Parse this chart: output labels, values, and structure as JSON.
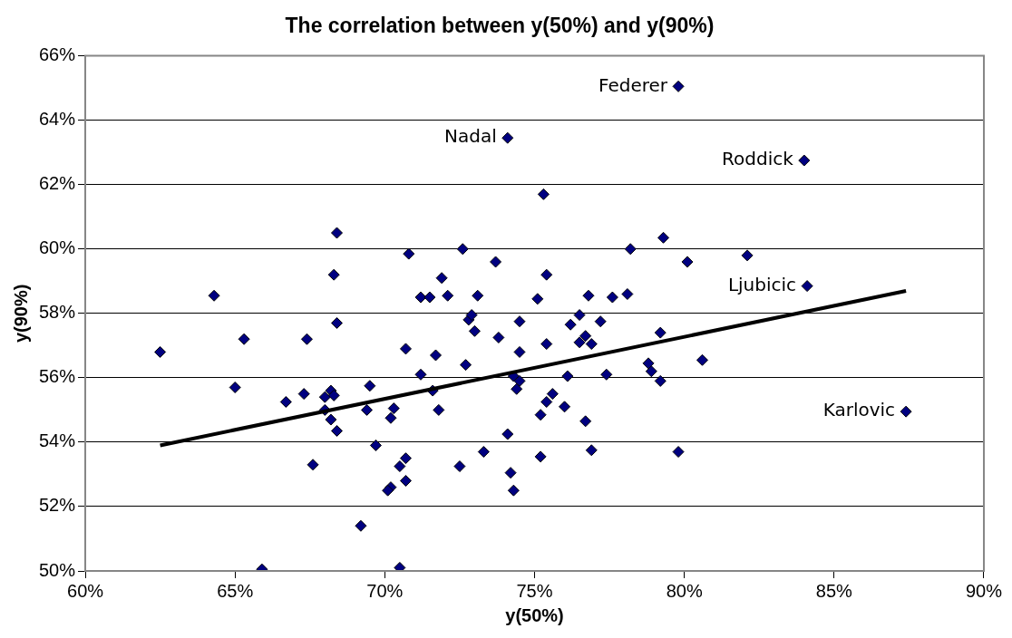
{
  "chart_data": {
    "type": "scatter",
    "title": "The correlation between y(50%) and y(90%)",
    "xlabel": "y(50%)",
    "ylabel": "y(90%)",
    "xlim": [
      60,
      90
    ],
    "xticks": [
      {
        "value": 60,
        "label": "60%"
      },
      {
        "value": 65,
        "label": "65%"
      },
      {
        "value": 70,
        "label": "70%"
      },
      {
        "value": 75,
        "label": "75%"
      },
      {
        "value": 80,
        "label": "80%"
      },
      {
        "value": 85,
        "label": "85%"
      },
      {
        "value": 90,
        "label": "90%"
      }
    ],
    "ylim": [
      50,
      66
    ],
    "yticks": [
      {
        "value": 50,
        "label": "50%"
      },
      {
        "value": 52,
        "label": "52%"
      },
      {
        "value": 54,
        "label": "54%"
      },
      {
        "value": 56,
        "label": "56%"
      },
      {
        "value": 58,
        "label": "58%"
      },
      {
        "value": 60,
        "label": "60%"
      },
      {
        "value": 62,
        "label": "62%"
      },
      {
        "value": 64,
        "label": "64%"
      },
      {
        "value": 66,
        "label": "66%"
      }
    ],
    "grid": "y",
    "legend": false,
    "series": [
      {
        "type": "scatter",
        "color": "#000080",
        "marker": "diamond",
        "x": [
          62.5,
          64.3,
          65.3,
          65.0,
          65.9,
          66.7,
          67.3,
          67.4,
          67.6,
          68.2,
          68.0,
          68.3,
          68.0,
          68.2,
          68.4,
          68.3,
          68.4,
          68.4,
          70.8,
          71.9,
          71.2,
          71.5,
          72.1,
          70.7,
          71.7,
          71.2,
          71.6,
          71.8,
          69.4,
          69.5,
          70.3,
          70.2,
          69.7,
          70.7,
          70.5,
          70.7,
          70.2,
          70.1,
          69.2,
          70.5,
          72.6,
          73.7,
          73.1,
          75.4,
          78.2,
          80.1,
          82.1,
          75.1,
          76.8,
          77.6,
          78.1,
          72.8,
          72.9,
          73.0,
          73.8,
          74.5,
          74.5,
          75.4,
          76.5,
          76.2,
          76.7,
          76.5,
          76.9,
          77.2,
          79.2,
          80.6,
          72.7,
          74.3,
          74.5,
          74.4,
          76.1,
          77.4,
          78.8,
          78.9,
          79.2,
          75.6,
          75.4,
          76.0,
          75.2,
          76.7,
          74.1,
          73.3,
          72.5,
          75.2,
          76.9,
          79.8,
          74.2,
          74.3,
          79.3,
          75.3,
          74.1,
          79.8,
          84.0,
          84.1,
          87.4
        ],
        "values": [
          56.8,
          58.55,
          57.2,
          55.7,
          50.05,
          55.25,
          55.5,
          57.2,
          53.3,
          55.6,
          55.4,
          55.45,
          55.0,
          54.7,
          54.35,
          59.2,
          57.7,
          60.5,
          59.85,
          59.1,
          58.5,
          58.5,
          58.55,
          56.9,
          56.7,
          56.1,
          55.6,
          55.0,
          55.0,
          55.75,
          55.05,
          54.75,
          53.9,
          53.5,
          53.25,
          52.8,
          52.6,
          52.5,
          51.4,
          50.1,
          60.0,
          59.6,
          58.55,
          59.2,
          60.0,
          59.6,
          59.8,
          58.45,
          58.55,
          58.5,
          58.6,
          57.8,
          57.95,
          57.45,
          57.25,
          57.75,
          56.8,
          57.05,
          57.95,
          57.65,
          57.3,
          57.1,
          57.05,
          57.75,
          57.4,
          56.55,
          56.4,
          56.05,
          55.9,
          55.65,
          56.05,
          56.1,
          56.45,
          56.2,
          55.9,
          55.5,
          55.25,
          55.1,
          54.85,
          54.65,
          54.25,
          53.7,
          53.25,
          53.55,
          53.75,
          53.7,
          53.05,
          52.5,
          60.35,
          61.7,
          63.45,
          65.05,
          62.75,
          58.85,
          54.95
        ]
      },
      {
        "type": "line",
        "color": "#000000",
        "marker": "none",
        "x": [
          62.5,
          87.4
        ],
        "values": [
          53.9,
          58.7
        ]
      }
    ],
    "annotations": [
      {
        "text": "Federer",
        "x": 79.8,
        "y": 65.05
      },
      {
        "text": "Nadal",
        "x": 74.1,
        "y": 63.45
      },
      {
        "text": "Roddick",
        "x": 84.0,
        "y": 62.75
      },
      {
        "text": "Ljubicic",
        "x": 84.1,
        "y": 58.85
      },
      {
        "text": "Karlovic",
        "x": 87.4,
        "y": 54.95
      }
    ]
  }
}
